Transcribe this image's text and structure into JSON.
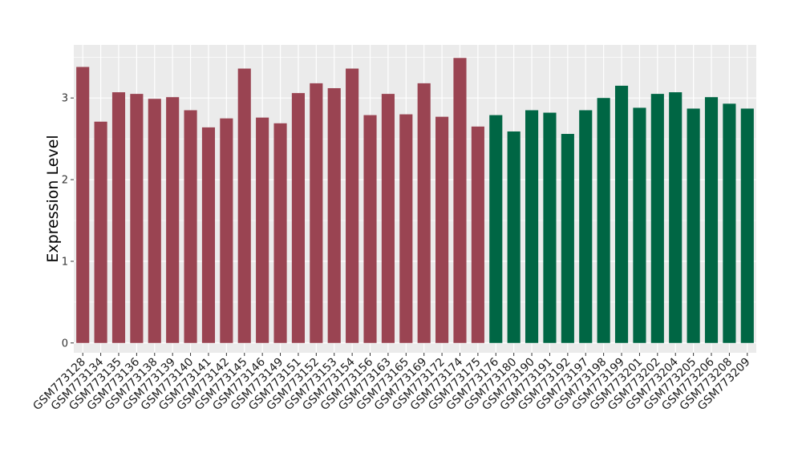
{
  "chart_data": {
    "type": "bar",
    "title": "",
    "xlabel": "",
    "ylabel": "Expression Level",
    "ylim": [
      -0.12,
      3.65
    ],
    "yticks": [
      0,
      1,
      2,
      3
    ],
    "grid": true,
    "legend": "none",
    "colors": {
      "group1": "#9a4452",
      "group2": "#006644",
      "panel": "#ebebeb",
      "gridline": "#ffffff"
    },
    "categories": [
      "GSM773128",
      "GSM773134",
      "GSM773135",
      "GSM773136",
      "GSM773138",
      "GSM773139",
      "GSM773140",
      "GSM773141",
      "GSM773142",
      "GSM773145",
      "GSM773146",
      "GSM773149",
      "GSM773151",
      "GSM773152",
      "GSM773153",
      "GSM773154",
      "GSM773156",
      "GSM773163",
      "GSM773165",
      "GSM773169",
      "GSM773172",
      "GSM773174",
      "GSM773175",
      "GSM773176",
      "GSM773180",
      "GSM773190",
      "GSM773191",
      "GSM773192",
      "GSM773197",
      "GSM773198",
      "GSM773199",
      "GSM773201",
      "GSM773202",
      "GSM773204",
      "GSM773205",
      "GSM773206",
      "GSM773208",
      "GSM773209"
    ],
    "values": [
      3.38,
      2.71,
      3.07,
      3.05,
      2.99,
      3.01,
      2.85,
      2.64,
      2.75,
      3.36,
      2.76,
      2.69,
      3.06,
      3.18,
      3.12,
      3.36,
      2.79,
      3.05,
      2.8,
      3.18,
      2.77,
      3.49,
      2.65,
      2.79,
      2.59,
      2.85,
      2.82,
      2.56,
      2.85,
      3.0,
      3.15,
      2.88,
      3.05,
      3.07,
      2.87,
      3.01,
      2.93,
      2.87
    ],
    "groups": [
      1,
      1,
      1,
      1,
      1,
      1,
      1,
      1,
      1,
      1,
      1,
      1,
      1,
      1,
      1,
      1,
      1,
      1,
      1,
      1,
      1,
      1,
      1,
      2,
      2,
      2,
      2,
      2,
      2,
      2,
      2,
      2,
      2,
      2,
      2,
      2,
      2,
      2
    ]
  }
}
